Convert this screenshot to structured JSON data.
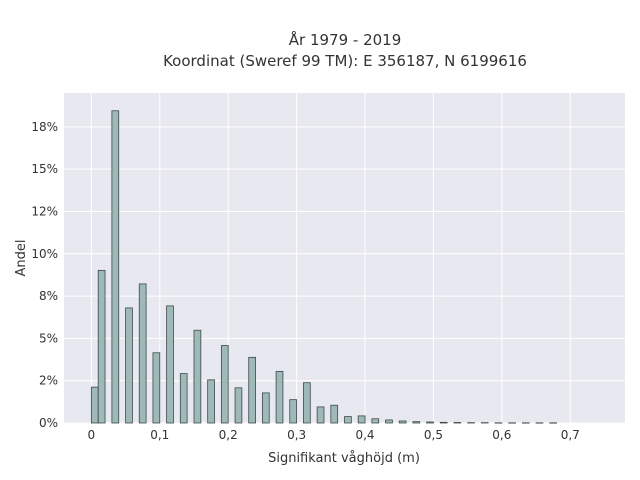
{
  "chart_data": {
    "type": "bar",
    "title_line1": "År 1979 - 2019",
    "title_line2": "Koordinat (Sweref 99 TM): E 356187, N 6199616",
    "xlabel": "Signifikant våghöjd (m)",
    "ylabel": "Andel",
    "xlim": [
      -0.04,
      0.78
    ],
    "ylim": [
      0,
      0.195
    ],
    "grid": true,
    "bin_width": 0.01,
    "x_ticks": [
      {
        "value": 0,
        "label": "0"
      },
      {
        "value": 0.1,
        "label": "0,1"
      },
      {
        "value": 0.2,
        "label": "0,2"
      },
      {
        "value": 0.3,
        "label": "0,3"
      },
      {
        "value": 0.4,
        "label": "0,4"
      },
      {
        "value": 0.5,
        "label": "0,5"
      },
      {
        "value": 0.6,
        "label": "0,6"
      },
      {
        "value": 0.7,
        "label": "0,7"
      }
    ],
    "y_ticks": [
      {
        "value": 0,
        "label": "0%"
      },
      {
        "value": 0.025,
        "label": "2%"
      },
      {
        "value": 0.05,
        "label": "5%"
      },
      {
        "value": 0.075,
        "label": "8%"
      },
      {
        "value": 0.1,
        "label": "10%"
      },
      {
        "value": 0.125,
        "label": "12%"
      },
      {
        "value": 0.15,
        "label": "15%"
      },
      {
        "value": 0.175,
        "label": "18%"
      }
    ],
    "bins": [
      0.0,
      0.01,
      0.02,
      0.03,
      0.04,
      0.05,
      0.06,
      0.07,
      0.08,
      0.09,
      0.1,
      0.11,
      0.12,
      0.13,
      0.14,
      0.15,
      0.16,
      0.17,
      0.18,
      0.19,
      0.2,
      0.21,
      0.22,
      0.23,
      0.24,
      0.25,
      0.26,
      0.27,
      0.28,
      0.29,
      0.3,
      0.31,
      0.32,
      0.33,
      0.34,
      0.35,
      0.36,
      0.37,
      0.38,
      0.39,
      0.4,
      0.41,
      0.42,
      0.43,
      0.44,
      0.45,
      0.46,
      0.47,
      0.48,
      0.49,
      0.5,
      0.51,
      0.52,
      0.53,
      0.54,
      0.55,
      0.56,
      0.57,
      0.58,
      0.59,
      0.6,
      0.61,
      0.62,
      0.63,
      0.64,
      0.65,
      0.66,
      0.67,
      0.68,
      0.69,
      0.7
    ],
    "values": [
      0.0212,
      0.0902,
      0.0,
      0.1845,
      0.0,
      0.068,
      0.0,
      0.0822,
      0.0,
      0.0415,
      0.0,
      0.0692,
      0.0,
      0.0292,
      0.0,
      0.0548,
      0.0,
      0.0255,
      0.0,
      0.0458,
      0.0,
      0.0208,
      0.0,
      0.0388,
      0.0,
      0.0178,
      0.0,
      0.0305,
      0.0,
      0.0138,
      0.0,
      0.0238,
      0.0,
      0.0095,
      0.0,
      0.0105,
      0.0,
      0.0038,
      0.0,
      0.0042,
      0.0,
      0.0025,
      0.0,
      0.0018,
      0.0,
      0.0012,
      0.0,
      0.0008,
      0.0,
      0.0006,
      0.0,
      0.0004,
      0.0,
      0.0003,
      0.0,
      0.0002,
      0.0,
      0.0002,
      0.0,
      0.0001,
      0.0,
      0.0001,
      0.0,
      0.0001,
      0.0,
      0.0001,
      0.0,
      0.0001,
      0.0,
      0.0,
      0.0
    ],
    "bar_color": "#9fb8b8",
    "bar_edge_color": "#3d4a4a",
    "plot_bg": "#e8e8f0",
    "grid_color": "#ffffff"
  }
}
